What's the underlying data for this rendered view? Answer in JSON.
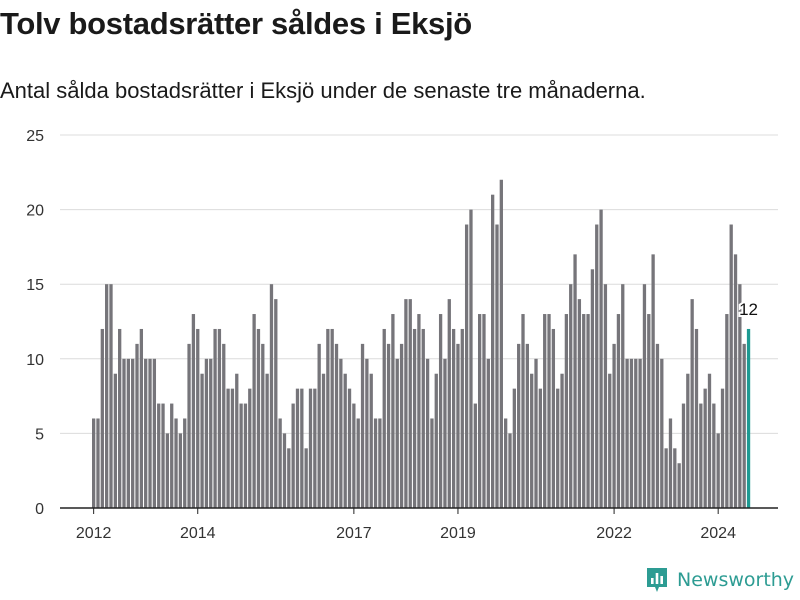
{
  "title": "Tolv bostadsrätter såldes i Eksjö",
  "subtitle": "Antal sålda bostadsrätter i Eksjö under de senaste tre månaderna.",
  "brand": {
    "name": "Newsworthy",
    "icon": "newsworthy-logo-icon",
    "color": "#2d9c93"
  },
  "colors": {
    "bar": "#76757a",
    "highlight": "#1d9a92",
    "grid": "#dcdcdc",
    "axis": "#222222"
  },
  "chart_data": {
    "type": "bar",
    "x_start": "2012-01",
    "x_interval": "month",
    "x_ticks": [
      {
        "label": "2012",
        "date": "2012-01"
      },
      {
        "label": "2014",
        "date": "2014-01"
      },
      {
        "label": "2017",
        "date": "2017-01"
      },
      {
        "label": "2019",
        "date": "2019-01"
      },
      {
        "label": "2022",
        "date": "2022-01"
      },
      {
        "label": "2024",
        "date": "2024-01"
      }
    ],
    "y_ticks": [
      0,
      5,
      10,
      15,
      20,
      25
    ],
    "ylim": [
      0,
      25
    ],
    "grid": true,
    "values": [
      6,
      6,
      12,
      15,
      15,
      9,
      12,
      10,
      10,
      10,
      11,
      12,
      10,
      10,
      10,
      7,
      7,
      5,
      7,
      6,
      5,
      6,
      11,
      13,
      12,
      9,
      10,
      10,
      12,
      12,
      11,
      8,
      8,
      9,
      7,
      7,
      8,
      13,
      12,
      11,
      9,
      15,
      14,
      6,
      5,
      4,
      7,
      8,
      8,
      4,
      8,
      8,
      11,
      9,
      12,
      12,
      11,
      10,
      9,
      8,
      7,
      6,
      11,
      10,
      9,
      6,
      6,
      12,
      11,
      13,
      10,
      11,
      14,
      14,
      12,
      13,
      12,
      10,
      6,
      9,
      13,
      10,
      14,
      12,
      11,
      12,
      19,
      20,
      7,
      13,
      13,
      10,
      21,
      19,
      22,
      6,
      5,
      8,
      11,
      13,
      11,
      9,
      10,
      8,
      13,
      13,
      12,
      8,
      9,
      13,
      15,
      17,
      14,
      13,
      13,
      16,
      19,
      20,
      15,
      9,
      11,
      13,
      15,
      10,
      10,
      10,
      10,
      15,
      13,
      17,
      11,
      10,
      4,
      6,
      4,
      3,
      7,
      9,
      14,
      12,
      7,
      8,
      9,
      7,
      5,
      8,
      13,
      19,
      17,
      15,
      11,
      12
    ],
    "highlight_index": 151,
    "highlight_label": "12"
  }
}
